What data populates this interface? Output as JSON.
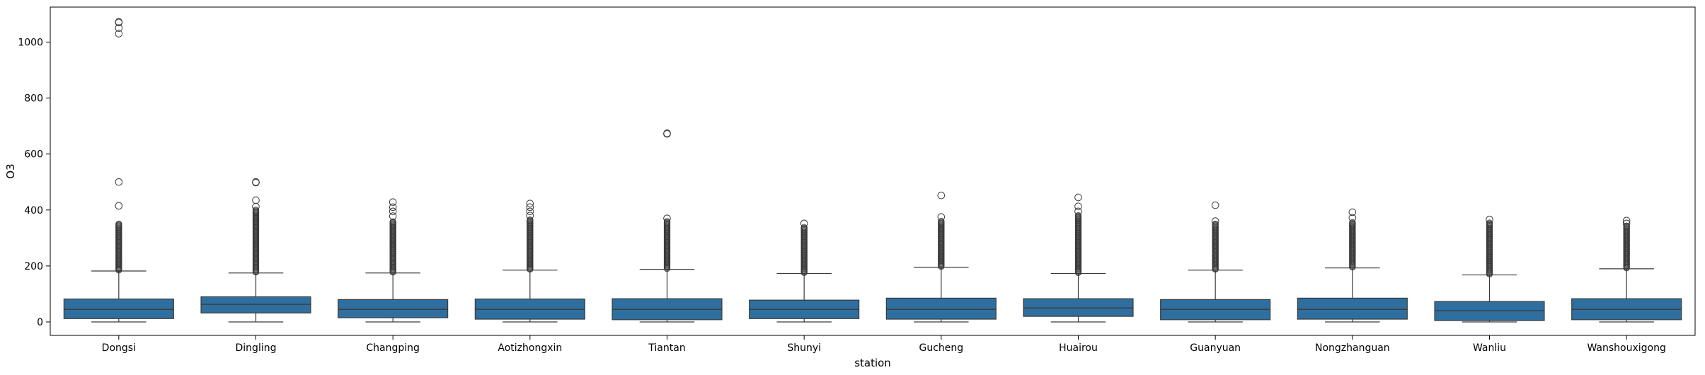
{
  "chart_data": {
    "type": "box",
    "xlabel": "station",
    "ylabel": "O3",
    "ylim": [
      -48,
      1125
    ],
    "yticks": [
      0,
      200,
      400,
      600,
      800,
      1000
    ],
    "grid": false,
    "box_color": "#2f6f9f",
    "categories": [
      "Dongsi",
      "Dingling",
      "Changping",
      "Aotizhongxin",
      "Tiantan",
      "Shunyi",
      "Gucheng",
      "Huairou",
      "Guanyuan",
      "Nongzhanguan",
      "Wanliu",
      "Wanshouxigong"
    ],
    "boxes": [
      {
        "station": "Dongsi",
        "whisker_low": 0,
        "q1": 12,
        "median": 45,
        "q3": 82,
        "whisker_high": 182,
        "dense_outliers_to": 350,
        "outliers": [
          415,
          500,
          1030,
          1050,
          1070,
          1072
        ]
      },
      {
        "station": "Dingling",
        "whisker_low": 0,
        "q1": 32,
        "median": 63,
        "q3": 90,
        "whisker_high": 175,
        "dense_outliers_to": 400,
        "outliers": [
          412,
          435,
          498,
          500
        ]
      },
      {
        "station": "Changping",
        "whisker_low": 0,
        "q1": 15,
        "median": 45,
        "q3": 80,
        "whisker_high": 175,
        "dense_outliers_to": 360,
        "outliers": [
          378,
          395,
          410,
          428
        ]
      },
      {
        "station": "Aotizhongxin",
        "whisker_low": 0,
        "q1": 10,
        "median": 45,
        "q3": 82,
        "whisker_high": 185,
        "dense_outliers_to": 365,
        "outliers": [
          380,
          395,
          410,
          423
        ]
      },
      {
        "station": "Tiantan",
        "whisker_low": 0,
        "q1": 8,
        "median": 45,
        "q3": 83,
        "whisker_high": 188,
        "dense_outliers_to": 360,
        "outliers": [
          370,
          672,
          674
        ]
      },
      {
        "station": "Shunyi",
        "whisker_low": 0,
        "q1": 12,
        "median": 45,
        "q3": 78,
        "whisker_high": 173,
        "dense_outliers_to": 340,
        "outliers": [
          352
        ]
      },
      {
        "station": "Gucheng",
        "whisker_low": 0,
        "q1": 10,
        "median": 45,
        "q3": 85,
        "whisker_high": 195,
        "dense_outliers_to": 360,
        "outliers": [
          375,
          452
        ]
      },
      {
        "station": "Huairou",
        "whisker_low": 0,
        "q1": 20,
        "median": 50,
        "q3": 83,
        "whisker_high": 173,
        "dense_outliers_to": 380,
        "outliers": [
          395,
          413,
          445
        ]
      },
      {
        "station": "Guanyuan",
        "whisker_low": 0,
        "q1": 8,
        "median": 45,
        "q3": 80,
        "whisker_high": 185,
        "dense_outliers_to": 350,
        "outliers": [
          360,
          417
        ]
      },
      {
        "station": "Nongzhanguan",
        "whisker_low": 0,
        "q1": 10,
        "median": 45,
        "q3": 85,
        "whisker_high": 193,
        "dense_outliers_to": 355,
        "outliers": [
          372,
          392
        ]
      },
      {
        "station": "Wanliu",
        "whisker_low": 0,
        "q1": 5,
        "median": 40,
        "q3": 73,
        "whisker_high": 168,
        "dense_outliers_to": 355,
        "outliers": [
          366
        ]
      },
      {
        "station": "Wanshouxigong",
        "whisker_low": 0,
        "q1": 8,
        "median": 45,
        "q3": 83,
        "whisker_high": 190,
        "dense_outliers_to": 345,
        "outliers": [
          352,
          362
        ]
      }
    ]
  }
}
